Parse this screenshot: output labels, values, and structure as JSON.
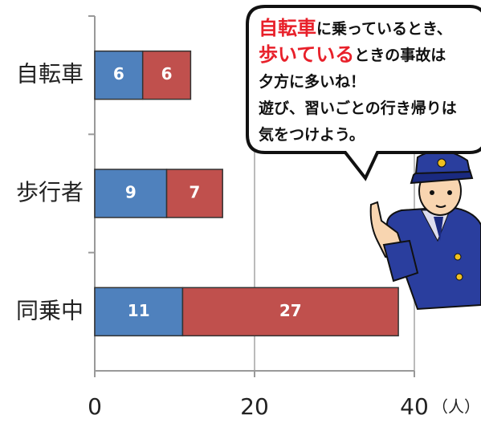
{
  "chart_data": {
    "type": "stacked-bar-horizontal",
    "categories": [
      "自転車",
      "歩行者",
      "同乗中"
    ],
    "series": [
      {
        "color": "#4f81bd",
        "values": [
          6,
          9,
          11
        ]
      },
      {
        "color": "#c0504d",
        "values": [
          6,
          7,
          27
        ]
      }
    ],
    "xlim": [
      0,
      40
    ],
    "xticks": [
      0,
      20,
      40
    ],
    "x_unit": "（人）",
    "grid": true
  },
  "speech_bubble": {
    "lines": [
      [
        {
          "text": "自転車",
          "highlight": true
        },
        {
          "text": "に乗っているとき、",
          "highlight": false
        }
      ],
      [
        {
          "text": "歩いている",
          "highlight": true
        },
        {
          "text": "ときの事故は",
          "highlight": false
        }
      ],
      [
        {
          "text": "夕方に多いね！",
          "highlight": false
        }
      ],
      [
        {
          "text": "遊び、習いごとの行き帰りは",
          "highlight": false
        }
      ],
      [
        {
          "text": "気をつけよう。",
          "highlight": false
        }
      ]
    ]
  }
}
